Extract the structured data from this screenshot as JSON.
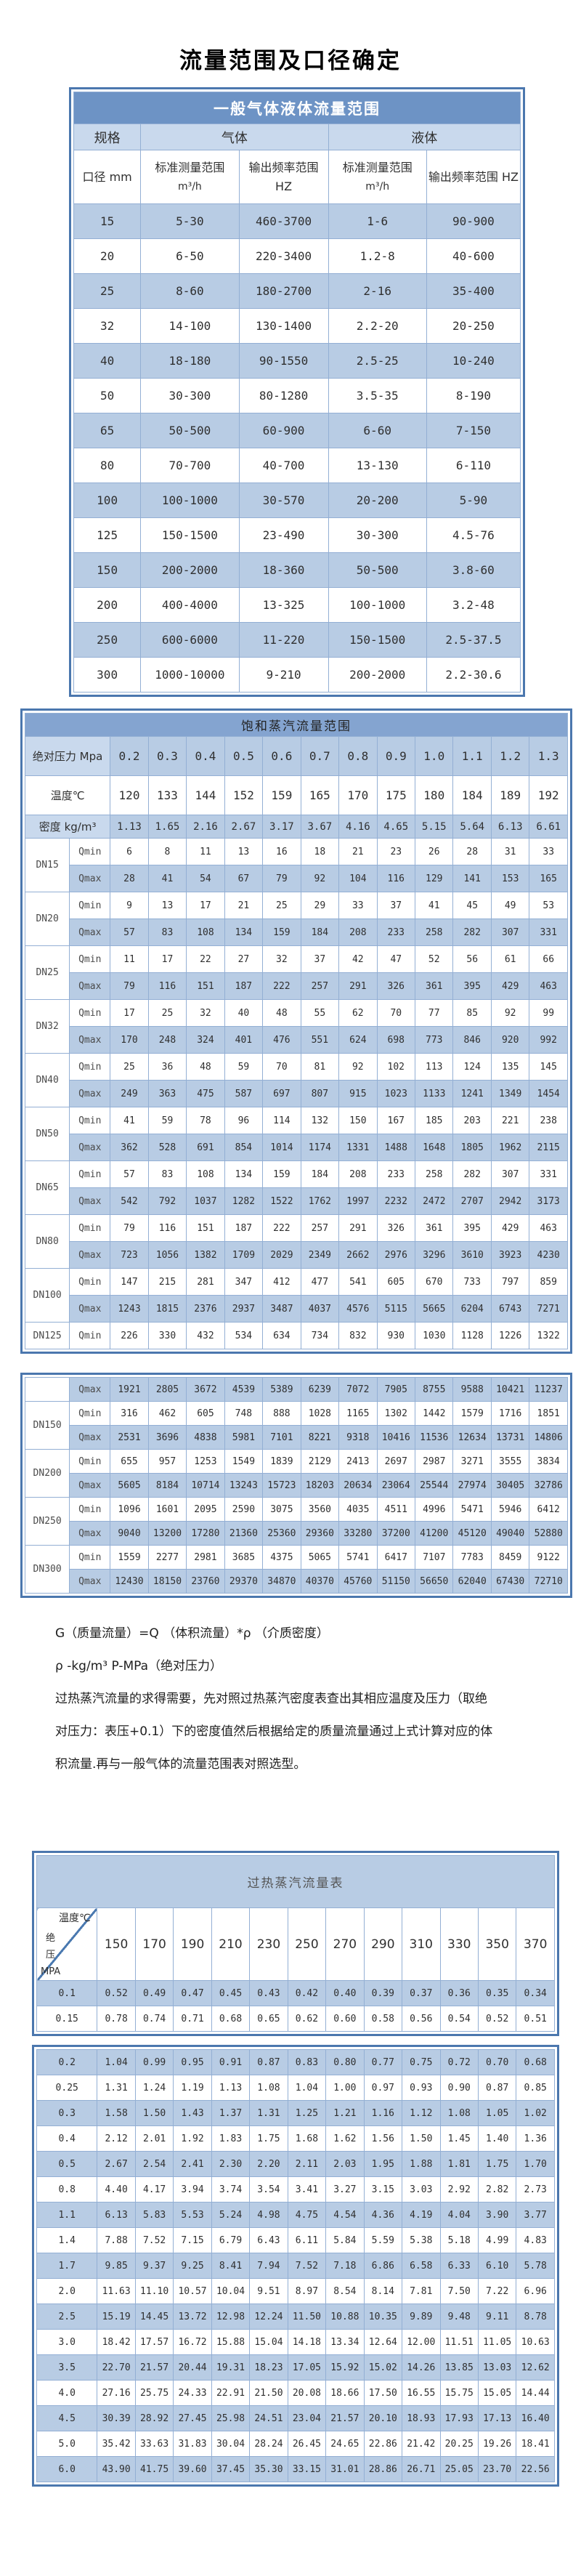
{
  "page": {
    "title": "流量范围及口径确定"
  },
  "general_table": {
    "title": "一般气体液体流量范围",
    "col1_header": "规格",
    "gas_header": "气体",
    "liquid_header": "液体",
    "diameter_header": "口径 mm",
    "measure_header": "标准测量范围",
    "measure_unit": "m³/h",
    "freq_header": "输出频率范围 HZ",
    "rows": [
      [
        "15",
        "5-30",
        "460-3700",
        "1-6",
        "90-900"
      ],
      [
        "20",
        "6-50",
        "220-3400",
        "1.2-8",
        "40-600"
      ],
      [
        "25",
        "8-60",
        "180-2700",
        "2-16",
        "35-400"
      ],
      [
        "32",
        "14-100",
        "130-1400",
        "2.2-20",
        "20-250"
      ],
      [
        "40",
        "18-180",
        "90-1550",
        "2.5-25",
        "10-240"
      ],
      [
        "50",
        "30-300",
        "80-1280",
        "3.5-35",
        "8-190"
      ],
      [
        "65",
        "50-500",
        "60-900",
        "6-60",
        "7-150"
      ],
      [
        "80",
        "70-700",
        "40-700",
        "13-130",
        "6-110"
      ],
      [
        "100",
        "100-1000",
        "30-570",
        "20-200",
        "5-90"
      ],
      [
        "125",
        "150-1500",
        "23-490",
        "30-300",
        "4.5-76"
      ],
      [
        "150",
        "200-2000",
        "18-360",
        "50-500",
        "3.8-60"
      ],
      [
        "200",
        "400-4000",
        "13-325",
        "100-1000",
        "3.2-48"
      ],
      [
        "250",
        "600-6000",
        "11-220",
        "150-1500",
        "2.5-37.5"
      ],
      [
        "300",
        "1000-10000",
        "9-210",
        "200-2000",
        "2.2-30.6"
      ]
    ]
  },
  "saturated_table": {
    "title": "饱和蒸汽流量范围",
    "pressure_label": "绝对压力 Mpa",
    "pressures": [
      "0.2",
      "0.3",
      "0.4",
      "0.5",
      "0.6",
      "0.7",
      "0.8",
      "0.9",
      "1.0",
      "1.1",
      "1.2",
      "1.3"
    ],
    "temperature_label": "温度℃",
    "temperatures": [
      "120",
      "133",
      "144",
      "152",
      "159",
      "165",
      "170",
      "175",
      "180",
      "184",
      "189",
      "192"
    ],
    "density_label": "密度 kg/m³",
    "densities": [
      "1.13",
      "1.65",
      "2.16",
      "2.67",
      "3.17",
      "3.67",
      "4.16",
      "4.65",
      "5.15",
      "5.64",
      "6.13",
      "6.61"
    ],
    "qmin_label": "Qmin",
    "qmax_label": "Qmax",
    "groups_part1": [
      {
        "dn": "DN15",
        "qmin": [
          "6",
          "8",
          "11",
          "13",
          "16",
          "18",
          "21",
          "23",
          "26",
          "28",
          "31",
          "33"
        ],
        "qmax": [
          "28",
          "41",
          "54",
          "67",
          "79",
          "92",
          "104",
          "116",
          "129",
          "141",
          "153",
          "165"
        ]
      },
      {
        "dn": "DN20",
        "qmin": [
          "9",
          "13",
          "17",
          "21",
          "25",
          "29",
          "33",
          "37",
          "41",
          "45",
          "49",
          "53"
        ],
        "qmax": [
          "57",
          "83",
          "108",
          "134",
          "159",
          "184",
          "208",
          "233",
          "258",
          "282",
          "307",
          "331"
        ]
      },
      {
        "dn": "DN25",
        "qmin": [
          "11",
          "17",
          "22",
          "27",
          "32",
          "37",
          "42",
          "47",
          "52",
          "56",
          "61",
          "66"
        ],
        "qmax": [
          "79",
          "116",
          "151",
          "187",
          "222",
          "257",
          "291",
          "326",
          "361",
          "395",
          "429",
          "463"
        ]
      },
      {
        "dn": "DN32",
        "qmin": [
          "17",
          "25",
          "32",
          "40",
          "48",
          "55",
          "62",
          "70",
          "77",
          "85",
          "92",
          "99"
        ],
        "qmax": [
          "170",
          "248",
          "324",
          "401",
          "476",
          "551",
          "624",
          "698",
          "773",
          "846",
          "920",
          "992"
        ]
      },
      {
        "dn": "DN40",
        "qmin": [
          "25",
          "36",
          "48",
          "59",
          "70",
          "81",
          "92",
          "102",
          "113",
          "124",
          "135",
          "145"
        ],
        "qmax": [
          "249",
          "363",
          "475",
          "587",
          "697",
          "807",
          "915",
          "1023",
          "1133",
          "1241",
          "1349",
          "1454"
        ]
      },
      {
        "dn": "DN50",
        "qmin": [
          "41",
          "59",
          "78",
          "96",
          "114",
          "132",
          "150",
          "167",
          "185",
          "203",
          "221",
          "238"
        ],
        "qmax": [
          "362",
          "528",
          "691",
          "854",
          "1014",
          "1174",
          "1331",
          "1488",
          "1648",
          "1805",
          "1962",
          "2115"
        ]
      },
      {
        "dn": "DN65",
        "qmin": [
          "57",
          "83",
          "108",
          "134",
          "159",
          "184",
          "208",
          "233",
          "258",
          "282",
          "307",
          "331"
        ],
        "qmax": [
          "542",
          "792",
          "1037",
          "1282",
          "1522",
          "1762",
          "1997",
          "2232",
          "2472",
          "2707",
          "2942",
          "3173"
        ]
      },
      {
        "dn": "DN80",
        "qmin": [
          "79",
          "116",
          "151",
          "187",
          "222",
          "257",
          "291",
          "326",
          "361",
          "395",
          "429",
          "463"
        ],
        "qmax": [
          "723",
          "1056",
          "1382",
          "1709",
          "2029",
          "2349",
          "2662",
          "2976",
          "3296",
          "3610",
          "3923",
          "4230"
        ]
      },
      {
        "dn": "DN100",
        "qmin": [
          "147",
          "215",
          "281",
          "347",
          "412",
          "477",
          "541",
          "605",
          "670",
          "733",
          "797",
          "859"
        ],
        "qmax": [
          "1243",
          "1815",
          "2376",
          "2937",
          "3487",
          "4037",
          "4576",
          "5115",
          "5665",
          "6204",
          "6743",
          "7271"
        ]
      },
      {
        "dn": "DN125",
        "qmin": [
          "226",
          "330",
          "432",
          "534",
          "634",
          "734",
          "832",
          "930",
          "1030",
          "1128",
          "1226",
          "1322"
        ]
      }
    ],
    "part2_leading_qmax": [
      "1921",
      "2805",
      "3672",
      "4539",
      "5389",
      "6239",
      "7072",
      "7905",
      "8755",
      "9588",
      "10421",
      "11237"
    ],
    "groups_part2": [
      {
        "dn": "DN150",
        "qmin": [
          "316",
          "462",
          "605",
          "748",
          "888",
          "1028",
          "1165",
          "1302",
          "1442",
          "1579",
          "1716",
          "1851"
        ],
        "qmax": [
          "2531",
          "3696",
          "4838",
          "5981",
          "7101",
          "8221",
          "9318",
          "10416",
          "11536",
          "12634",
          "13731",
          "14806"
        ]
      },
      {
        "dn": "DN200",
        "qmin": [
          "655",
          "957",
          "1253",
          "1549",
          "1839",
          "2129",
          "2413",
          "2697",
          "2987",
          "3271",
          "3555",
          "3834"
        ],
        "qmax": [
          "5605",
          "8184",
          "10714",
          "13243",
          "15723",
          "18203",
          "20634",
          "23064",
          "25544",
          "27974",
          "30405",
          "32786"
        ]
      },
      {
        "dn": "DN250",
        "qmin": [
          "1096",
          "1601",
          "2095",
          "2590",
          "3075",
          "3560",
          "4035",
          "4511",
          "4996",
          "5471",
          "5946",
          "6412"
        ],
        "qmax": [
          "9040",
          "13200",
          "17280",
          "21360",
          "25360",
          "29360",
          "33280",
          "37200",
          "41200",
          "45120",
          "49040",
          "52880"
        ]
      },
      {
        "dn": "DN300",
        "qmin": [
          "1559",
          "2277",
          "2981",
          "3685",
          "4375",
          "5065",
          "5741",
          "6417",
          "7107",
          "7783",
          "8459",
          "9122"
        ],
        "qmax": [
          "12430",
          "18150",
          "23760",
          "29370",
          "34870",
          "40370",
          "45760",
          "51150",
          "56650",
          "62040",
          "67430",
          "72710"
        ]
      }
    ]
  },
  "notes": {
    "formula": "G（质量流量）=Q （体积流量）*ρ （介质密度）",
    "rho_line": "ρ -kg/m³ P-MPa（绝对压力）",
    "paragraph_lines": [
      "过热蒸汽流量的求得需要，先对照过热蒸汽密度表查出其相应温度及压力（取绝",
      "对压力：表压+0.1）下的密度值然后根据给定的质量流量通过上式计算对应的体",
      "积流量.再与一般气体的流量范围表对照选型。"
    ]
  },
  "superheated_table": {
    "title": "过热蒸汽流量表",
    "corner_top_label": "温度℃",
    "corner_bottom_label": "绝\n压\nMPA",
    "temperatures": [
      "150",
      "170",
      "190",
      "210",
      "230",
      "250",
      "270",
      "290",
      "310",
      "330",
      "350",
      "370"
    ],
    "rows_part1": [
      {
        "pressure": "0.1",
        "values": [
          "0.52",
          "0.49",
          "0.47",
          "0.45",
          "0.43",
          "0.42",
          "0.40",
          "0.39",
          "0.37",
          "0.36",
          "0.35",
          "0.34"
        ]
      },
      {
        "pressure": "0.15",
        "values": [
          "0.78",
          "0.74",
          "0.71",
          "0.68",
          "0.65",
          "0.62",
          "0.60",
          "0.58",
          "0.56",
          "0.54",
          "0.52",
          "0.51"
        ]
      }
    ],
    "rows_part2": [
      {
        "pressure": "0.2",
        "values": [
          "1.04",
          "0.99",
          "0.95",
          "0.91",
          "0.87",
          "0.83",
          "0.80",
          "0.77",
          "0.75",
          "0.72",
          "0.70",
          "0.68"
        ]
      },
      {
        "pressure": "0.25",
        "values": [
          "1.31",
          "1.24",
          "1.19",
          "1.13",
          "1.08",
          "1.04",
          "1.00",
          "0.97",
          "0.93",
          "0.90",
          "0.87",
          "0.85"
        ]
      },
      {
        "pressure": "0.3",
        "values": [
          "1.58",
          "1.50",
          "1.43",
          "1.37",
          "1.31",
          "1.25",
          "1.21",
          "1.16",
          "1.12",
          "1.08",
          "1.05",
          "1.02"
        ]
      },
      {
        "pressure": "0.4",
        "values": [
          "2.12",
          "2.01",
          "1.92",
          "1.83",
          "1.75",
          "1.68",
          "1.62",
          "1.56",
          "1.50",
          "1.45",
          "1.40",
          "1.36"
        ]
      },
      {
        "pressure": "0.5",
        "values": [
          "2.67",
          "2.54",
          "2.41",
          "2.30",
          "2.20",
          "2.11",
          "2.03",
          "1.95",
          "1.88",
          "1.81",
          "1.75",
          "1.70"
        ]
      },
      {
        "pressure": "0.8",
        "values": [
          "4.40",
          "4.17",
          "3.94",
          "3.74",
          "3.54",
          "3.41",
          "3.27",
          "3.15",
          "3.03",
          "2.92",
          "2.82",
          "2.73"
        ]
      },
      {
        "pressure": "1.1",
        "values": [
          "6.13",
          "5.83",
          "5.53",
          "5.24",
          "4.98",
          "4.75",
          "4.54",
          "4.36",
          "4.19",
          "4.04",
          "3.90",
          "3.77"
        ]
      },
      {
        "pressure": "1.4",
        "values": [
          "7.88",
          "7.52",
          "7.15",
          "6.79",
          "6.43",
          "6.11",
          "5.84",
          "5.59",
          "5.38",
          "5.18",
          "4.99",
          "4.83"
        ]
      },
      {
        "pressure": "1.7",
        "values": [
          "9.85",
          "9.37",
          "9.25",
          "8.41",
          "7.94",
          "7.52",
          "7.18",
          "6.86",
          "6.58",
          "6.33",
          "6.10",
          "5.78"
        ]
      },
      {
        "pressure": "2.0",
        "values": [
          "11.63",
          "11.10",
          "10.57",
          "10.04",
          "9.51",
          "8.97",
          "8.54",
          "8.14",
          "7.81",
          "7.50",
          "7.22",
          "6.96"
        ]
      },
      {
        "pressure": "2.5",
        "values": [
          "15.19",
          "14.45",
          "13.72",
          "12.98",
          "12.24",
          "11.50",
          "10.88",
          "10.35",
          "9.89",
          "9.48",
          "9.11",
          "8.78"
        ]
      },
      {
        "pressure": "3.0",
        "values": [
          "18.42",
          "17.57",
          "16.72",
          "15.88",
          "15.04",
          "14.18",
          "13.34",
          "12.64",
          "12.00",
          "11.51",
          "11.05",
          "10.63"
        ]
      },
      {
        "pressure": "3.5",
        "values": [
          "22.70",
          "21.57",
          "20.44",
          "19.31",
          "18.23",
          "17.05",
          "15.92",
          "15.02",
          "14.26",
          "13.85",
          "13.03",
          "12.62"
        ]
      },
      {
        "pressure": "4.0",
        "values": [
          "27.16",
          "25.75",
          "24.33",
          "22.91",
          "21.50",
          "20.08",
          "18.66",
          "17.50",
          "16.55",
          "15.75",
          "15.05",
          "14.44"
        ]
      },
      {
        "pressure": "4.5",
        "values": [
          "30.39",
          "28.92",
          "27.45",
          "25.98",
          "24.51",
          "23.04",
          "21.57",
          "20.10",
          "18.93",
          "17.93",
          "17.13",
          "16.40"
        ]
      },
      {
        "pressure": "5.0",
        "values": [
          "35.42",
          "33.63",
          "31.83",
          "30.04",
          "28.24",
          "26.45",
          "24.65",
          "22.86",
          "21.42",
          "20.25",
          "19.26",
          "18.41"
        ]
      },
      {
        "pressure": "6.0",
        "values": [
          "43.90",
          "41.75",
          "39.60",
          "37.45",
          "35.30",
          "33.15",
          "31.01",
          "28.86",
          "26.71",
          "25.05",
          "23.70",
          "22.56"
        ]
      }
    ]
  },
  "colors": {
    "frame_blue": "#4b77ae",
    "row_blue": "#b8cce4",
    "header_blue": "#c9d9ed",
    "table1_title_bg": "#6d93c5",
    "table2_title_bg": "#84a4d0",
    "table3_title_bg": "#b8cce4"
  }
}
